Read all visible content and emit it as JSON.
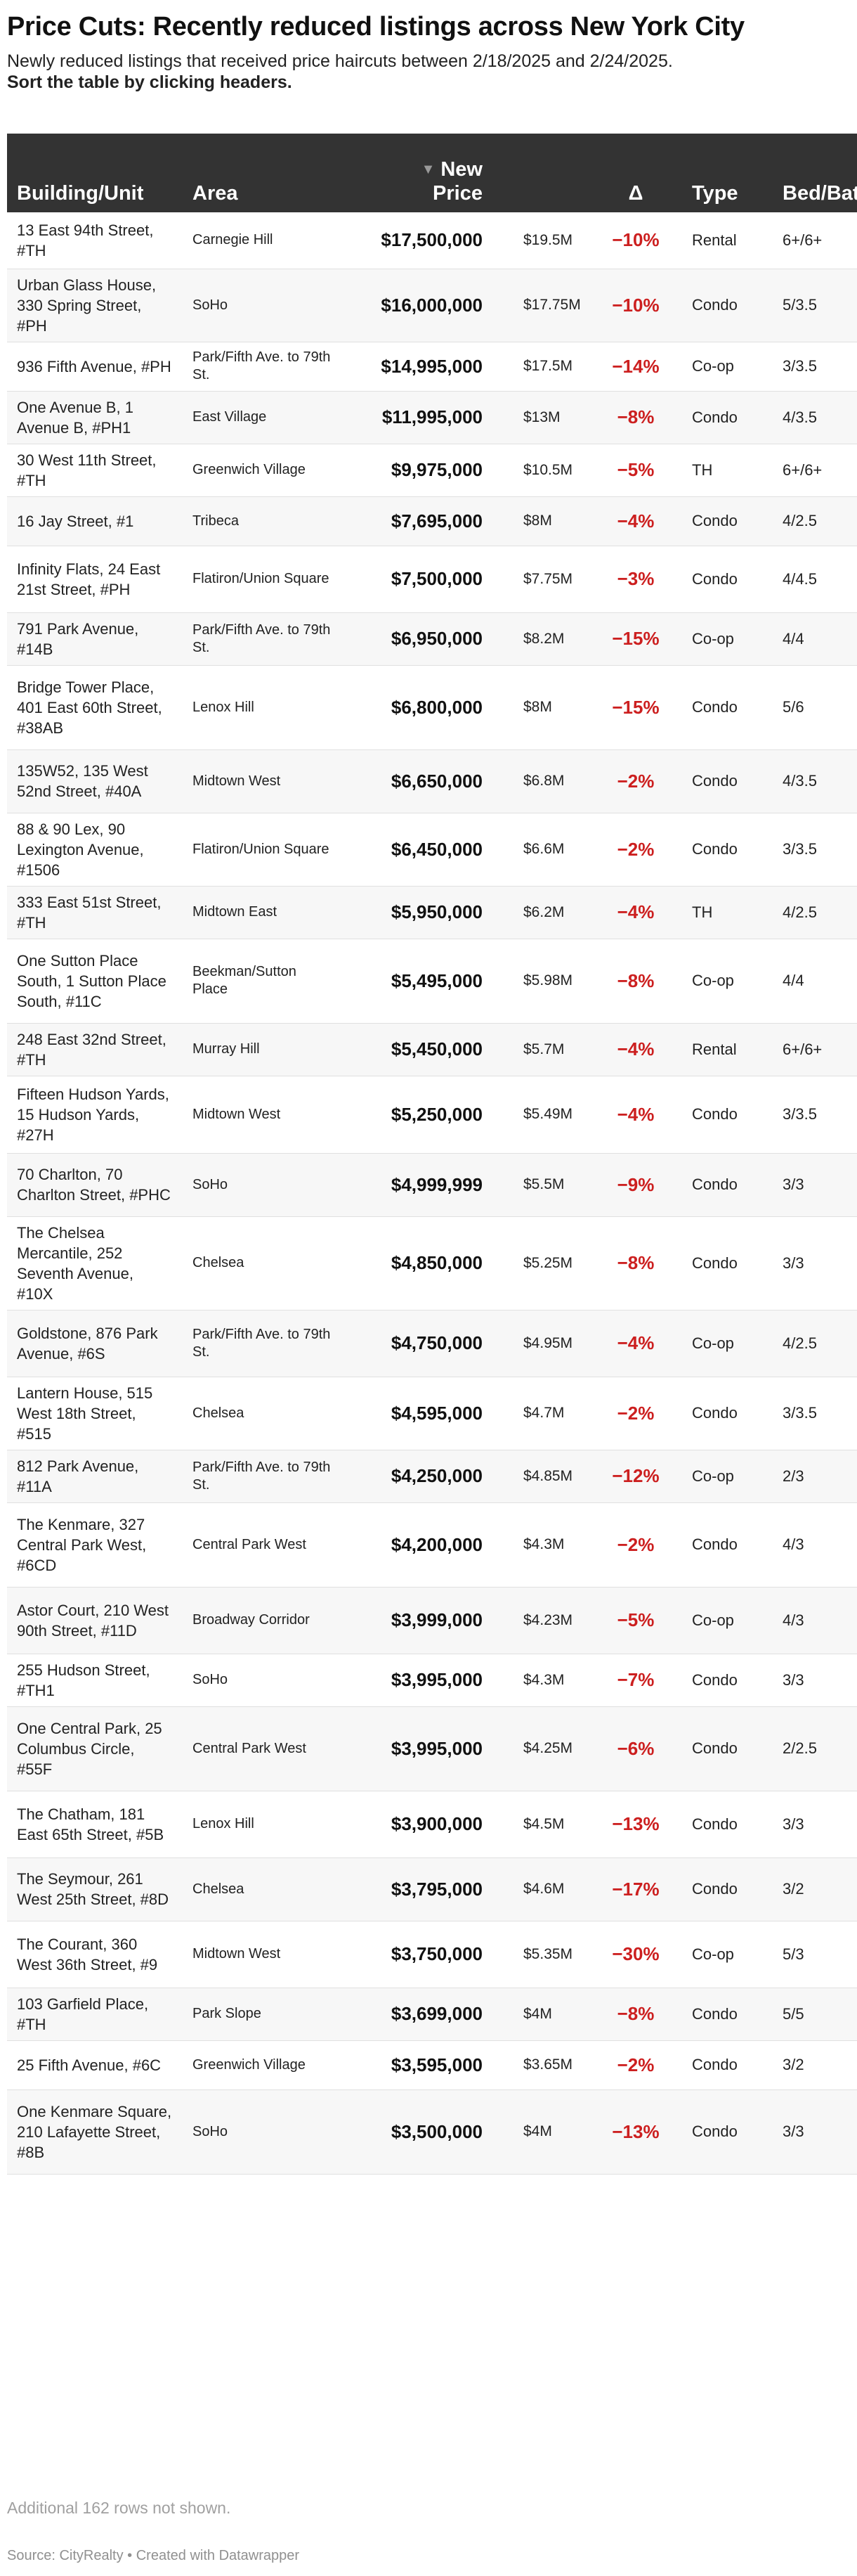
{
  "title": "Price Cuts: Recently reduced listings across New York City",
  "description": "Newly reduced listings that received price haircuts between 2/18/2025 and 2/24/2025.",
  "instruction": "Sort the table by clicking headers.",
  "colors": {
    "header_bg": "#333333",
    "header_text": "#ffffff",
    "delta": "#cc1f1f",
    "row_alt": "#f7f7f7"
  },
  "chart_data": {
    "type": "table",
    "sort_icon": "sort-desc-triangle-icon",
    "columns": [
      "Building/Unit",
      "Area",
      "New Price",
      "",
      "Δ",
      "Type",
      "Bed/Bath"
    ],
    "sorted_by": "New Price",
    "rows": [
      {
        "building": "13 East 94th Street, #TH",
        "area": "Carnegie Hill",
        "new_price": "$17,500,000",
        "old_price": "$19.5M",
        "delta": "−10%",
        "type": "Rental",
        "bedbath": "6+/6+"
      },
      {
        "building": "Urban Glass House, 330 Spring Street, #PH",
        "area": "SoHo",
        "new_price": "$16,000,000",
        "old_price": "$17.75M",
        "delta": "−10%",
        "type": "Condo",
        "bedbath": "5/3.5"
      },
      {
        "building": "936 Fifth Avenue, #PH",
        "area": "Park/Fifth Ave. to 79th St.",
        "new_price": "$14,995,000",
        "old_price": "$17.5M",
        "delta": "−14%",
        "type": "Co-op",
        "bedbath": "3/3.5"
      },
      {
        "building": "One Avenue B, 1 Avenue B, #PH1",
        "area": "East Village",
        "new_price": "$11,995,000",
        "old_price": "$13M",
        "delta": "−8%",
        "type": "Condo",
        "bedbath": "4/3.5"
      },
      {
        "building": "30 West 11th Street, #TH",
        "area": "Greenwich Village",
        "new_price": "$9,975,000",
        "old_price": "$10.5M",
        "delta": "−5%",
        "type": "TH",
        "bedbath": "6+/6+"
      },
      {
        "building": "16 Jay Street, #1",
        "area": "Tribeca",
        "new_price": "$7,695,000",
        "old_price": "$8M",
        "delta": "−4%",
        "type": "Condo",
        "bedbath": "4/2.5"
      },
      {
        "building": "Infinity Flats, 24 East 21st Street, #PH",
        "area": "Flatiron/Union Square",
        "new_price": "$7,500,000",
        "old_price": "$7.75M",
        "delta": "−3%",
        "type": "Condo",
        "bedbath": "4/4.5"
      },
      {
        "building": "791 Park Avenue, #14B",
        "area": "Park/Fifth Ave. to 79th St.",
        "new_price": "$6,950,000",
        "old_price": "$8.2M",
        "delta": "−15%",
        "type": "Co-op",
        "bedbath": "4/4"
      },
      {
        "building": "Bridge Tower Place, 401 East 60th Street, #38AB",
        "area": "Lenox Hill",
        "new_price": "$6,800,000",
        "old_price": "$8M",
        "delta": "−15%",
        "type": "Condo",
        "bedbath": "5/6"
      },
      {
        "building": "135W52, 135 West 52nd Street, #40A",
        "area": "Midtown West",
        "new_price": "$6,650,000",
        "old_price": "$6.8M",
        "delta": "−2%",
        "type": "Condo",
        "bedbath": "4/3.5"
      },
      {
        "building": "88 & 90 Lex, 90 Lexington Avenue, #1506",
        "area": "Flatiron/Union Square",
        "new_price": "$6,450,000",
        "old_price": "$6.6M",
        "delta": "−2%",
        "type": "Condo",
        "bedbath": "3/3.5"
      },
      {
        "building": "333 East 51st Street, #TH",
        "area": "Midtown East",
        "new_price": "$5,950,000",
        "old_price": "$6.2M",
        "delta": "−4%",
        "type": "TH",
        "bedbath": "4/2.5"
      },
      {
        "building": "One Sutton Place South, 1 Sutton Place South, #11C",
        "area": "Beekman/Sutton Place",
        "new_price": "$5,495,000",
        "old_price": "$5.98M",
        "delta": "−8%",
        "type": "Co-op",
        "bedbath": "4/4"
      },
      {
        "building": "248 East 32nd Street, #TH",
        "area": "Murray Hill",
        "new_price": "$5,450,000",
        "old_price": "$5.7M",
        "delta": "−4%",
        "type": "Rental",
        "bedbath": "6+/6+"
      },
      {
        "building": "Fifteen Hudson Yards, 15 Hudson Yards, #27H",
        "area": "Midtown West",
        "new_price": "$5,250,000",
        "old_price": "$5.49M",
        "delta": "−4%",
        "type": "Condo",
        "bedbath": "3/3.5"
      },
      {
        "building": "70 Charlton, 70 Charlton Street, #PHC",
        "area": "SoHo",
        "new_price": "$4,999,999",
        "old_price": "$5.5M",
        "delta": "−9%",
        "type": "Condo",
        "bedbath": "3/3"
      },
      {
        "building": "The Chelsea Mercantile, 252 Seventh Avenue, #10X",
        "area": "Chelsea",
        "new_price": "$4,850,000",
        "old_price": "$5.25M",
        "delta": "−8%",
        "type": "Condo",
        "bedbath": "3/3"
      },
      {
        "building": "Goldstone, 876 Park Avenue, #6S",
        "area": "Park/Fifth Ave. to 79th St.",
        "new_price": "$4,750,000",
        "old_price": "$4.95M",
        "delta": "−4%",
        "type": "Co-op",
        "bedbath": "4/2.5"
      },
      {
        "building": "Lantern House, 515 West 18th Street, #515",
        "area": "Chelsea",
        "new_price": "$4,595,000",
        "old_price": "$4.7M",
        "delta": "−2%",
        "type": "Condo",
        "bedbath": "3/3.5"
      },
      {
        "building": "812 Park Avenue, #11A",
        "area": "Park/Fifth Ave. to 79th St.",
        "new_price": "$4,250,000",
        "old_price": "$4.85M",
        "delta": "−12%",
        "type": "Co-op",
        "bedbath": "2/3"
      },
      {
        "building": "The Kenmare, 327 Central Park West, #6CD",
        "area": "Central Park West",
        "new_price": "$4,200,000",
        "old_price": "$4.3M",
        "delta": "−2%",
        "type": "Condo",
        "bedbath": "4/3"
      },
      {
        "building": "Astor Court, 210 West 90th Street, #11D",
        "area": "Broadway Corridor",
        "new_price": "$3,999,000",
        "old_price": "$4.23M",
        "delta": "−5%",
        "type": "Co-op",
        "bedbath": "4/3"
      },
      {
        "building": "255 Hudson Street, #TH1",
        "area": "SoHo",
        "new_price": "$3,995,000",
        "old_price": "$4.3M",
        "delta": "−7%",
        "type": "Condo",
        "bedbath": "3/3"
      },
      {
        "building": "One Central Park, 25 Columbus Circle, #55F",
        "area": "Central Park West",
        "new_price": "$3,995,000",
        "old_price": "$4.25M",
        "delta": "−6%",
        "type": "Condo",
        "bedbath": "2/2.5"
      },
      {
        "building": "The Chatham, 181 East 65th Street, #5B",
        "area": "Lenox Hill",
        "new_price": "$3,900,000",
        "old_price": "$4.5M",
        "delta": "−13%",
        "type": "Condo",
        "bedbath": "3/3"
      },
      {
        "building": "The Seymour, 261 West 25th Street, #8D",
        "area": "Chelsea",
        "new_price": "$3,795,000",
        "old_price": "$4.6M",
        "delta": "−17%",
        "type": "Condo",
        "bedbath": "3/2"
      },
      {
        "building": "The Courant, 360 West 36th Street, #9",
        "area": "Midtown West",
        "new_price": "$3,750,000",
        "old_price": "$5.35M",
        "delta": "−30%",
        "type": "Co-op",
        "bedbath": "5/3"
      },
      {
        "building": "103 Garfield Place, #TH",
        "area": "Park Slope",
        "new_price": "$3,699,000",
        "old_price": "$4M",
        "delta": "−8%",
        "type": "Condo",
        "bedbath": "5/5"
      },
      {
        "building": "25 Fifth Avenue, #6C",
        "area": "Greenwich Village",
        "new_price": "$3,595,000",
        "old_price": "$3.65M",
        "delta": "−2%",
        "type": "Condo",
        "bedbath": "3/2"
      },
      {
        "building": "One Kenmare Square, 210 Lafayette Street, #8B",
        "area": "SoHo",
        "new_price": "$3,500,000",
        "old_price": "$4M",
        "delta": "−13%",
        "type": "Condo",
        "bedbath": "3/3"
      }
    ]
  },
  "footer_note": "Additional 162 rows not shown.",
  "source": "Source: CityRealty • Created with Datawrapper"
}
